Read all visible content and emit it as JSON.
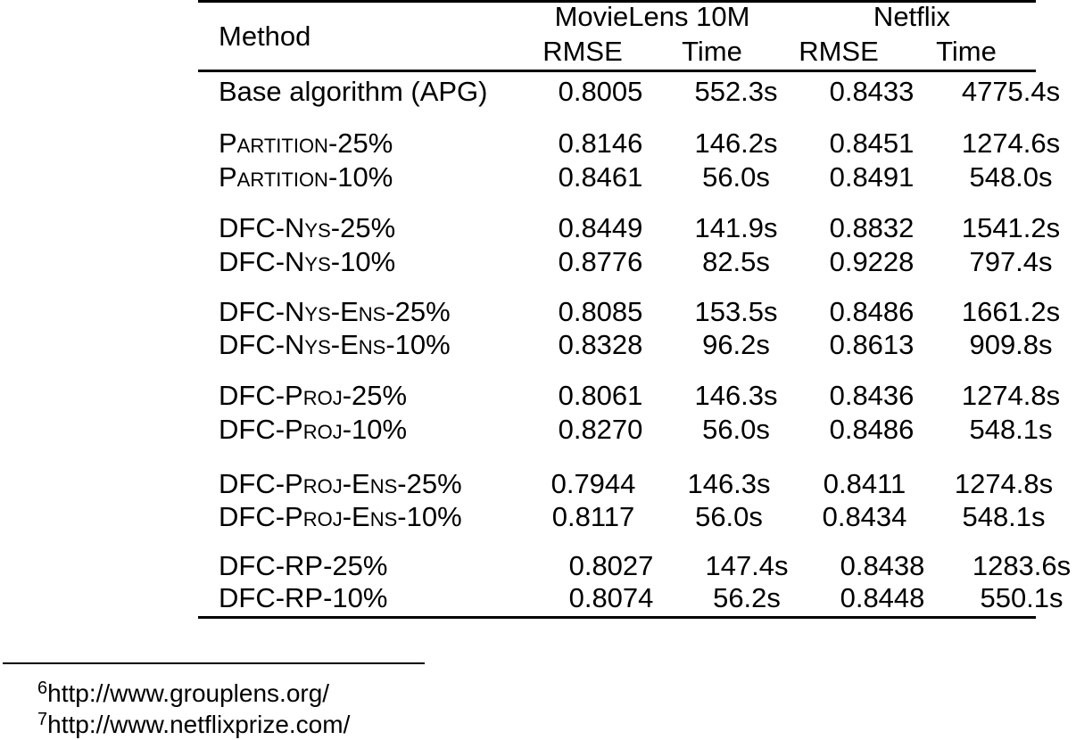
{
  "table": {
    "header": {
      "method": "Method",
      "groups": [
        {
          "label": "MovieLens 10M"
        },
        {
          "label": "Netflix"
        }
      ],
      "subcols": [
        "RMSE",
        "Time",
        "RMSE",
        "Time"
      ]
    },
    "groups": [
      {
        "rows": [
          {
            "method": "Base algorithm (APG)",
            "smallcaps": false,
            "values": [
              "0.8005",
              "552.3s",
              "0.8433",
              "4775.4s"
            ]
          }
        ]
      },
      {
        "rows": [
          {
            "method": "Partition-25%",
            "smallcaps": true,
            "values": [
              "0.8146",
              "146.2s",
              "0.8451",
              "1274.6s"
            ]
          },
          {
            "method": "Partition-10%",
            "smallcaps": true,
            "values": [
              "0.8461",
              "56.0s",
              "0.8491",
              "548.0s"
            ]
          }
        ]
      },
      {
        "rows": [
          {
            "method": "DFC-Nys-25%",
            "smallcaps": true,
            "values": [
              "0.8449",
              "141.9s",
              "0.8832",
              "1541.2s"
            ]
          },
          {
            "method": "DFC-Nys-10%",
            "smallcaps": true,
            "values": [
              "0.8776",
              "82.5s",
              "0.9228",
              "797.4s"
            ]
          }
        ]
      },
      {
        "rows": [
          {
            "method": "DFC-Nys-Ens-25%",
            "smallcaps": true,
            "values": [
              "0.8085",
              "153.5s",
              "0.8486",
              "1661.2s"
            ]
          },
          {
            "method": "DFC-Nys-Ens-10%",
            "smallcaps": true,
            "values": [
              "0.8328",
              "96.2s",
              "0.8613",
              "909.8s"
            ]
          }
        ]
      },
      {
        "rows": [
          {
            "method": "DFC-Proj-25%",
            "smallcaps": true,
            "values": [
              "0.8061",
              "146.3s",
              "0.8436",
              "1274.8s"
            ]
          },
          {
            "method": "DFC-Proj-10%",
            "smallcaps": true,
            "values": [
              "0.8270",
              "56.0s",
              "0.8486",
              "548.1s"
            ]
          }
        ]
      },
      {
        "rows": [
          {
            "method": "DFC-Proj-Ens-25%",
            "smallcaps": true,
            "values": [
              "0.7944",
              "146.3s",
              "0.8411",
              "1274.8s"
            ]
          },
          {
            "method": "DFC-Proj-Ens-10%",
            "smallcaps": true,
            "values": [
              "0.8117",
              "56.0s",
              "0.8434",
              "548.1s"
            ]
          }
        ]
      },
      {
        "rows": [
          {
            "method": "DFC-RP-25%",
            "smallcaps": true,
            "values": [
              "0.8027",
              "147.4s",
              "0.8438",
              "1283.6s"
            ]
          },
          {
            "method": "DFC-RP-10%",
            "smallcaps": true,
            "values": [
              "0.8074",
              "56.2s",
              "0.8448",
              "550.1s"
            ]
          }
        ]
      }
    ]
  },
  "footnotes": [
    {
      "marker": "6",
      "text": "http://www.grouplens.org/"
    },
    {
      "marker": "7",
      "text": "http://www.netflixprize.com/"
    }
  ]
}
